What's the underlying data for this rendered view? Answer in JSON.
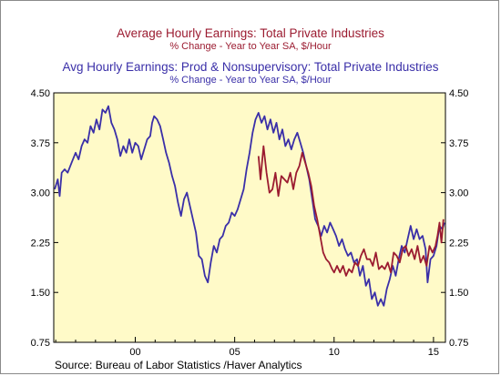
{
  "titles": {
    "series1_title": "Average Hourly Earnings: Total Private Industries",
    "series1_subtitle": "% Change - Year to Year    SA, $/Hour",
    "series2_title": "Avg Hourly Earnings: Prod & Nonsupervisory: Total Private Industries",
    "series2_subtitle": "% Change - Year to Year    SA, $/Hour"
  },
  "source": "Source:  Bureau of Labor Statistics /Haver Analytics",
  "colors": {
    "plot_background": "#fffac8",
    "series1": "#9b1b30",
    "series2": "#3a2fa8"
  },
  "chart_data": {
    "type": "line",
    "xlim": [
      1995.9,
      2015.6
    ],
    "ylim": [
      0.75,
      4.5
    ],
    "y_ticks": [
      "0.75",
      "1.50",
      "2.25",
      "3.00",
      "3.75",
      "4.50"
    ],
    "y_tick_values": [
      0.75,
      1.5,
      2.25,
      3.0,
      3.75,
      4.5
    ],
    "x_ticks": [
      "00",
      "05",
      "10",
      "15"
    ],
    "x_tick_values": [
      2000,
      2005,
      2010,
      2015
    ],
    "grid": false,
    "series": [
      {
        "name": "Average Hourly Earnings: Total Private Industries",
        "color": "#9b1b30",
        "points": [
          [
            2006.2,
            3.55
          ],
          [
            2006.3,
            3.2
          ],
          [
            2006.45,
            3.7
          ],
          [
            2006.6,
            3.3
          ],
          [
            2006.75,
            3.0
          ],
          [
            2006.9,
            3.05
          ],
          [
            2007.05,
            3.3
          ],
          [
            2007.2,
            2.95
          ],
          [
            2007.35,
            3.25
          ],
          [
            2007.5,
            3.2
          ],
          [
            2007.65,
            3.15
          ],
          [
            2007.8,
            3.3
          ],
          [
            2007.95,
            3.05
          ],
          [
            2008.1,
            3.3
          ],
          [
            2008.25,
            3.4
          ],
          [
            2008.4,
            3.6
          ],
          [
            2008.55,
            3.45
          ],
          [
            2008.7,
            3.3
          ],
          [
            2008.85,
            3.1
          ],
          [
            2009.0,
            2.8
          ],
          [
            2009.15,
            2.6
          ],
          [
            2009.3,
            2.35
          ],
          [
            2009.45,
            2.1
          ],
          [
            2009.6,
            2.0
          ],
          [
            2009.75,
            1.95
          ],
          [
            2009.9,
            1.85
          ],
          [
            2010.0,
            1.8
          ],
          [
            2010.15,
            1.9
          ],
          [
            2010.3,
            1.8
          ],
          [
            2010.45,
            1.9
          ],
          [
            2010.6,
            1.75
          ],
          [
            2010.75,
            1.85
          ],
          [
            2010.9,
            1.8
          ],
          [
            2011.05,
            1.95
          ],
          [
            2011.2,
            1.9
          ],
          [
            2011.35,
            2.05
          ],
          [
            2011.5,
            2.15
          ],
          [
            2011.65,
            2.0
          ],
          [
            2011.8,
            2.0
          ],
          [
            2011.95,
            1.9
          ],
          [
            2012.1,
            2.1
          ],
          [
            2012.25,
            1.85
          ],
          [
            2012.4,
            1.9
          ],
          [
            2012.55,
            1.85
          ],
          [
            2012.7,
            1.95
          ],
          [
            2012.85,
            1.8
          ],
          [
            2013.0,
            2.1
          ],
          [
            2013.15,
            2.05
          ],
          [
            2013.3,
            1.95
          ],
          [
            2013.45,
            2.15
          ],
          [
            2013.6,
            2.2
          ],
          [
            2013.75,
            2.05
          ],
          [
            2013.9,
            2.15
          ],
          [
            2014.05,
            2.0
          ],
          [
            2014.2,
            2.2
          ],
          [
            2014.35,
            1.95
          ],
          [
            2014.5,
            2.05
          ],
          [
            2014.65,
            1.9
          ],
          [
            2014.8,
            2.2
          ],
          [
            2014.95,
            2.1
          ],
          [
            2015.1,
            2.2
          ],
          [
            2015.2,
            2.35
          ],
          [
            2015.3,
            2.55
          ],
          [
            2015.4,
            2.25
          ],
          [
            2015.5,
            2.6
          ]
        ]
      },
      {
        "name": "Avg Hourly Earnings: Prod & Nonsupervisory: Total Private Industries",
        "color": "#3a2fa8",
        "points": [
          [
            1995.95,
            3.05
          ],
          [
            1996.1,
            3.2
          ],
          [
            1996.2,
            2.95
          ],
          [
            1996.3,
            3.3
          ],
          [
            1996.45,
            3.35
          ],
          [
            1996.6,
            3.3
          ],
          [
            1996.8,
            3.45
          ],
          [
            1997.0,
            3.6
          ],
          [
            1997.15,
            3.5
          ],
          [
            1997.3,
            3.7
          ],
          [
            1997.45,
            3.8
          ],
          [
            1997.6,
            3.75
          ],
          [
            1997.75,
            4.0
          ],
          [
            1997.9,
            3.9
          ],
          [
            1998.05,
            4.1
          ],
          [
            1998.2,
            3.95
          ],
          [
            1998.35,
            4.25
          ],
          [
            1998.5,
            4.2
          ],
          [
            1998.65,
            4.3
          ],
          [
            1998.8,
            4.05
          ],
          [
            1998.95,
            3.95
          ],
          [
            1999.1,
            3.8
          ],
          [
            1999.25,
            3.55
          ],
          [
            1999.4,
            3.7
          ],
          [
            1999.55,
            3.6
          ],
          [
            1999.7,
            3.8
          ],
          [
            1999.85,
            3.6
          ],
          [
            2000.0,
            3.75
          ],
          [
            2000.15,
            3.7
          ],
          [
            2000.3,
            3.5
          ],
          [
            2000.45,
            3.65
          ],
          [
            2000.6,
            3.8
          ],
          [
            2000.75,
            3.85
          ],
          [
            2000.85,
            4.05
          ],
          [
            2000.95,
            4.15
          ],
          [
            2001.1,
            4.1
          ],
          [
            2001.25,
            4.0
          ],
          [
            2001.4,
            3.8
          ],
          [
            2001.55,
            3.6
          ],
          [
            2001.7,
            3.45
          ],
          [
            2001.85,
            3.25
          ],
          [
            2002.0,
            3.1
          ],
          [
            2002.15,
            2.85
          ],
          [
            2002.3,
            2.65
          ],
          [
            2002.45,
            2.9
          ],
          [
            2002.6,
            3.0
          ],
          [
            2002.75,
            2.8
          ],
          [
            2002.9,
            2.6
          ],
          [
            2003.05,
            2.4
          ],
          [
            2003.2,
            2.05
          ],
          [
            2003.35,
            2.0
          ],
          [
            2003.5,
            1.75
          ],
          [
            2003.65,
            1.65
          ],
          [
            2003.8,
            1.95
          ],
          [
            2003.95,
            2.2
          ],
          [
            2004.1,
            2.1
          ],
          [
            2004.25,
            2.3
          ],
          [
            2004.4,
            2.35
          ],
          [
            2004.55,
            2.5
          ],
          [
            2004.7,
            2.55
          ],
          [
            2004.85,
            2.7
          ],
          [
            2005.0,
            2.65
          ],
          [
            2005.15,
            2.75
          ],
          [
            2005.3,
            2.9
          ],
          [
            2005.45,
            3.05
          ],
          [
            2005.6,
            3.35
          ],
          [
            2005.75,
            3.6
          ],
          [
            2005.9,
            3.9
          ],
          [
            2006.05,
            4.1
          ],
          [
            2006.2,
            4.2
          ],
          [
            2006.35,
            4.05
          ],
          [
            2006.5,
            4.15
          ],
          [
            2006.65,
            3.95
          ],
          [
            2006.8,
            4.1
          ],
          [
            2006.95,
            3.9
          ],
          [
            2007.1,
            4.05
          ],
          [
            2007.25,
            3.8
          ],
          [
            2007.4,
            3.95
          ],
          [
            2007.55,
            3.7
          ],
          [
            2007.7,
            3.8
          ],
          [
            2007.85,
            3.65
          ],
          [
            2008.0,
            3.8
          ],
          [
            2008.15,
            3.9
          ],
          [
            2008.3,
            3.75
          ],
          [
            2008.45,
            3.6
          ],
          [
            2008.6,
            3.4
          ],
          [
            2008.75,
            3.2
          ],
          [
            2008.9,
            2.9
          ],
          [
            2009.05,
            2.6
          ],
          [
            2009.2,
            2.5
          ],
          [
            2009.35,
            2.35
          ],
          [
            2009.5,
            2.5
          ],
          [
            2009.65,
            2.4
          ],
          [
            2009.8,
            2.55
          ],
          [
            2009.95,
            2.45
          ],
          [
            2010.1,
            2.35
          ],
          [
            2010.25,
            2.2
          ],
          [
            2010.4,
            2.3
          ],
          [
            2010.55,
            2.15
          ],
          [
            2010.7,
            2.05
          ],
          [
            2010.85,
            2.1
          ],
          [
            2011.0,
            1.95
          ],
          [
            2011.15,
            2.0
          ],
          [
            2011.3,
            1.75
          ],
          [
            2011.45,
            1.9
          ],
          [
            2011.6,
            1.6
          ],
          [
            2011.75,
            1.7
          ],
          [
            2011.9,
            1.4
          ],
          [
            2012.05,
            1.5
          ],
          [
            2012.2,
            1.3
          ],
          [
            2012.35,
            1.4
          ],
          [
            2012.5,
            1.3
          ],
          [
            2012.65,
            1.55
          ],
          [
            2012.8,
            1.7
          ],
          [
            2012.95,
            1.9
          ],
          [
            2013.1,
            1.75
          ],
          [
            2013.25,
            2.0
          ],
          [
            2013.4,
            2.2
          ],
          [
            2013.55,
            2.1
          ],
          [
            2013.7,
            2.3
          ],
          [
            2013.85,
            2.5
          ],
          [
            2014.0,
            2.3
          ],
          [
            2014.15,
            2.45
          ],
          [
            2014.3,
            2.3
          ],
          [
            2014.45,
            2.35
          ],
          [
            2014.6,
            2.15
          ],
          [
            2014.7,
            1.65
          ],
          [
            2014.85,
            2.0
          ],
          [
            2015.0,
            2.05
          ],
          [
            2015.15,
            2.2
          ],
          [
            2015.3,
            2.5
          ],
          [
            2015.45,
            2.45
          ],
          [
            2015.55,
            2.55
          ]
        ]
      }
    ]
  }
}
